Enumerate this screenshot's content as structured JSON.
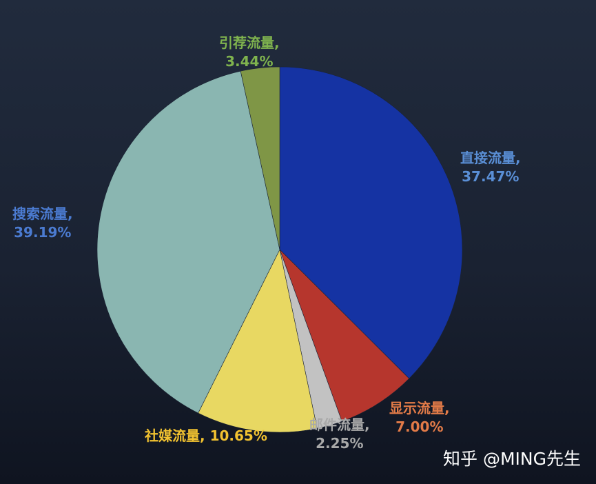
{
  "chart_data": {
    "type": "pie",
    "slices": [
      {
        "name": "直接流量",
        "value": 37.47,
        "display": "37.47%",
        "color": "#1533a3",
        "label_color": "#5a8fd6"
      },
      {
        "name": "显示流量",
        "value": 7.0,
        "display": "7.00%",
        "color": "#b6362d",
        "label_color": "#e37b48"
      },
      {
        "name": "邮件流量",
        "value": 2.25,
        "display": "2.25%",
        "color": "#c2c2c2",
        "label_color": "#a9a9a9"
      },
      {
        "name": "社媒流量",
        "value": 10.65,
        "display": "10.65%",
        "color": "#e8d862",
        "label_color": "#f2c230"
      },
      {
        "name": "搜索流量",
        "value": 39.19,
        "display": "39.19%",
        "color": "#8ab6b1",
        "label_color": "#4b7bd1"
      },
      {
        "name": "引荐流量",
        "value": 3.44,
        "display": "3.44%",
        "color": "#7f9646",
        "label_color": "#7fb34e"
      }
    ]
  },
  "watermark": "知乎 @MING先生"
}
